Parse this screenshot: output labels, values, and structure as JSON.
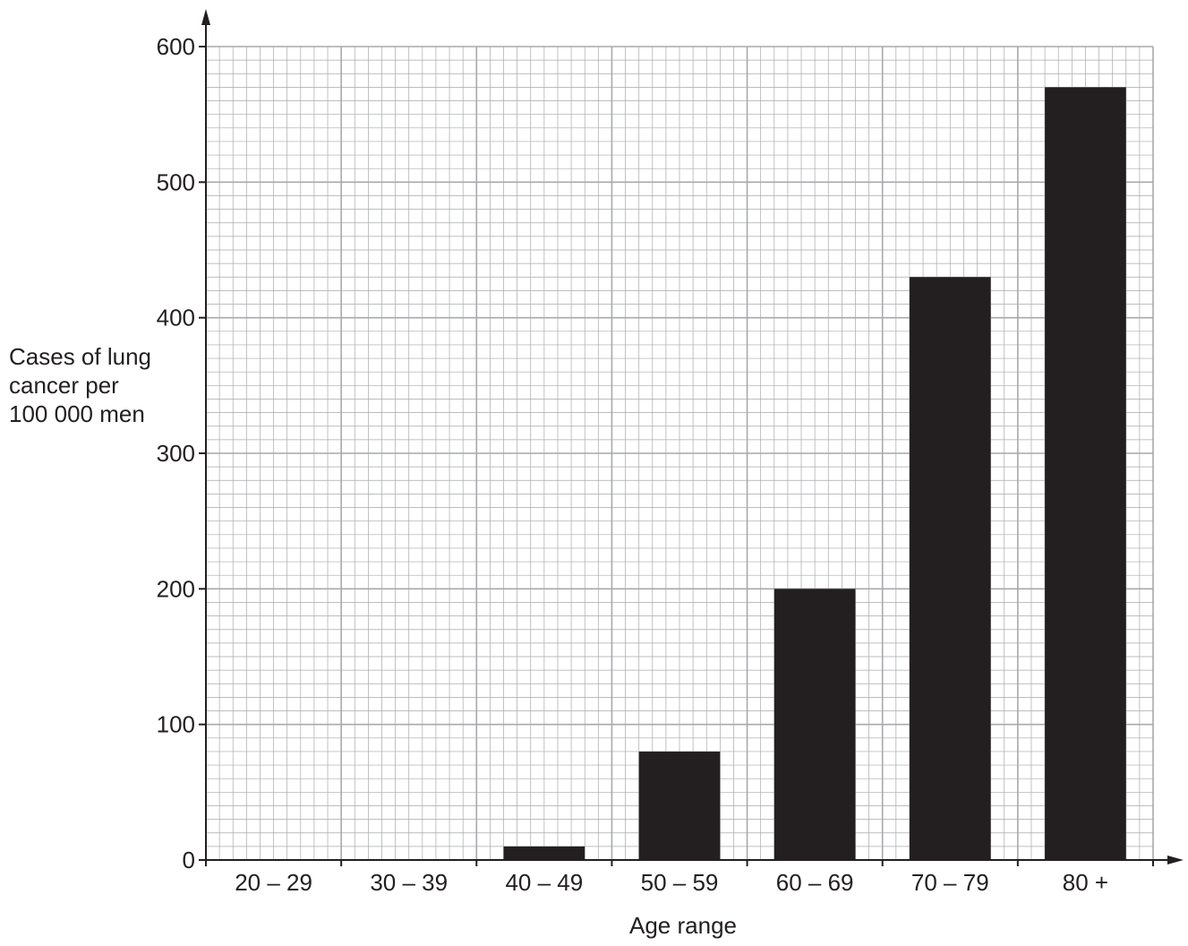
{
  "chart_data": {
    "type": "bar",
    "xlabel": "Age range",
    "ylabel_lines": [
      "Cases of lung",
      "cancer per",
      "100 000 men"
    ],
    "categories": [
      "20 – 29",
      "30 – 39",
      "40 – 49",
      "50 – 59",
      "60 – 69",
      "70 – 79",
      "80 +"
    ],
    "values": [
      0,
      0,
      10,
      80,
      200,
      430,
      570
    ],
    "yticks": [
      "0",
      "100",
      "200",
      "300",
      "400",
      "500",
      "600"
    ],
    "ylim": [
      0,
      600
    ],
    "grid": true,
    "bar_color": "#231f20",
    "grid_color": "#a7a9ac"
  }
}
